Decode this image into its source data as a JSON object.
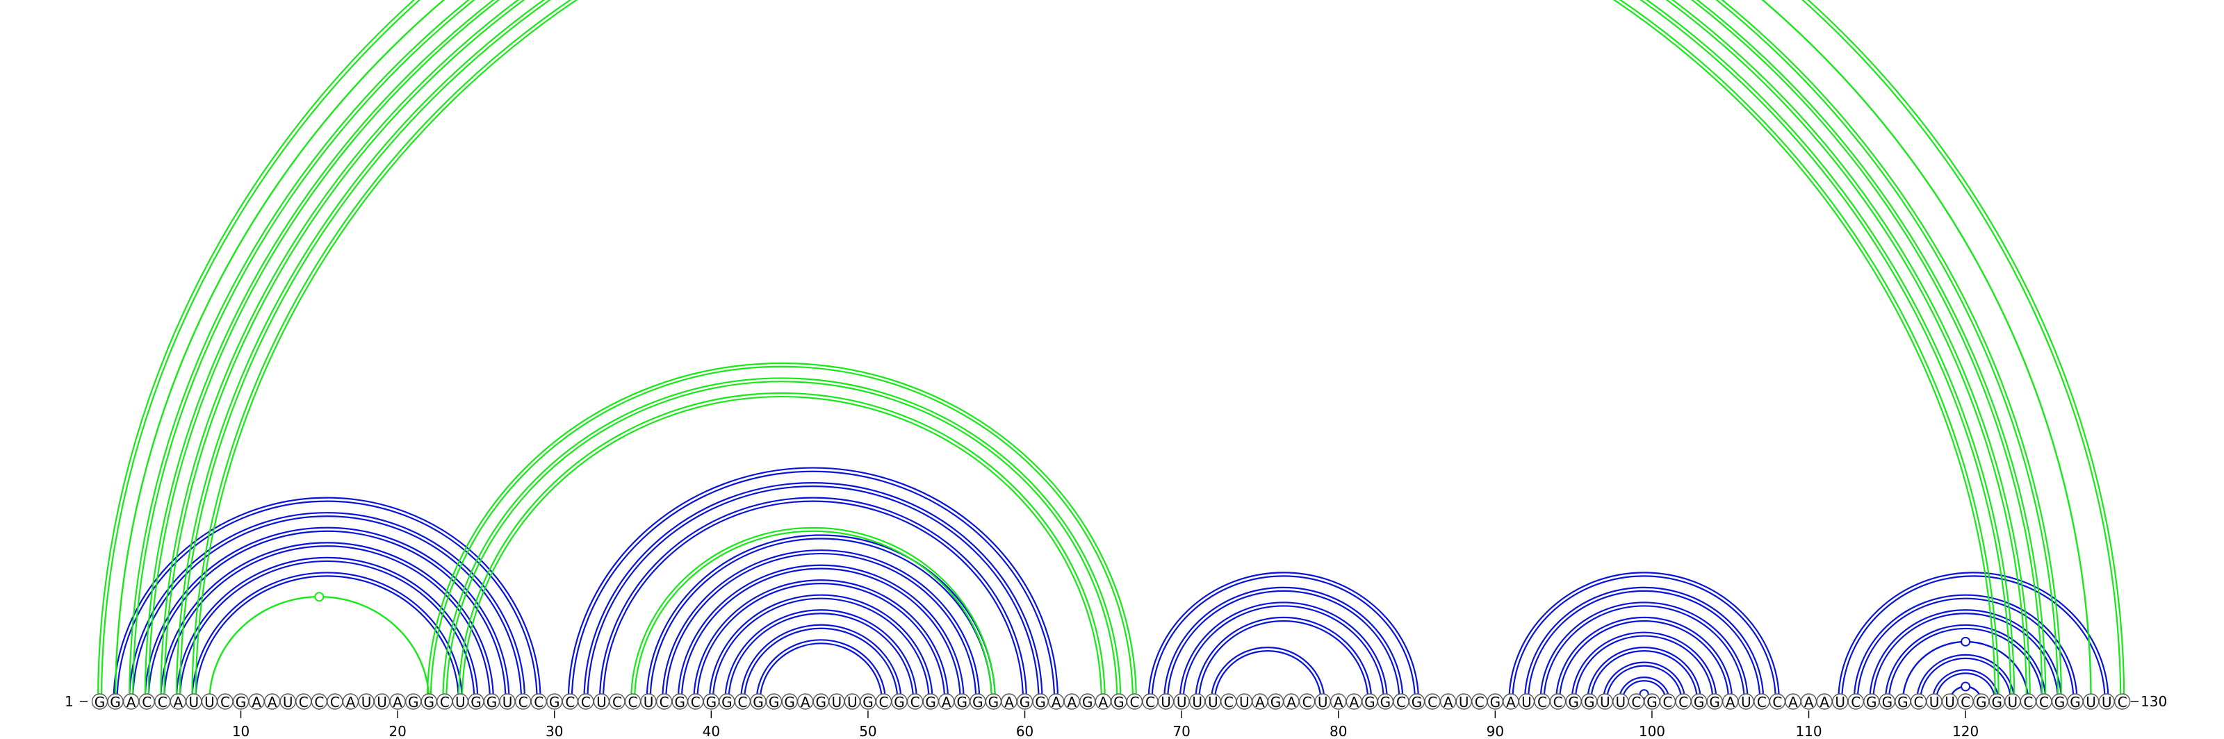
{
  "diagram": {
    "type": "rna-arc-diagram",
    "sequence": "GGACCAUUCGAAUCCCAUUAGGCUGGUCCGCCUCCUCGCGGCGGGAGUUGCGCGAGGGAGGAAGAGCCUUUUCUAGACUAAGGCGCAUCGAUCCGGUUCGCCGGAUCCAAAUCGGGCUUCGGUCCGGUUC",
    "start_label": "1",
    "end_label": "130",
    "tick_labels": [
      "10",
      "20",
      "30",
      "40",
      "50",
      "60",
      "70",
      "80",
      "90",
      "100",
      "110",
      "120"
    ],
    "colors": {
      "nested": "#0a14d6",
      "crossing": "#18e818"
    },
    "arcs": [
      {
        "i": 2,
        "j": 29,
        "c": "nested",
        "n": 2
      },
      {
        "i": 3,
        "j": 28,
        "c": "nested",
        "n": 2
      },
      {
        "i": 4,
        "j": 27,
        "c": "nested",
        "n": 2
      },
      {
        "i": 5,
        "j": 26,
        "c": "nested",
        "n": 2
      },
      {
        "i": 6,
        "j": 25,
        "c": "nested",
        "n": 2
      },
      {
        "i": 7,
        "j": 24,
        "c": "nested",
        "n": 2
      },
      {
        "i": 8,
        "j": 22,
        "c": "crossing",
        "n": 1,
        "knot": true
      },
      {
        "i": 31,
        "j": 62,
        "c": "nested",
        "n": 2
      },
      {
        "i": 32,
        "j": 61,
        "c": "nested",
        "n": 2
      },
      {
        "i": 33,
        "j": 60,
        "c": "nested",
        "n": 2
      },
      {
        "i": 36,
        "j": 58,
        "c": "nested",
        "n": 2
      },
      {
        "i": 37,
        "j": 57,
        "c": "nested",
        "n": 2
      },
      {
        "i": 38,
        "j": 56,
        "c": "nested",
        "n": 2
      },
      {
        "i": 39,
        "j": 55,
        "c": "nested",
        "n": 2
      },
      {
        "i": 40,
        "j": 54,
        "c": "nested",
        "n": 2
      },
      {
        "i": 41,
        "j": 53,
        "c": "nested",
        "n": 2
      },
      {
        "i": 42,
        "j": 52,
        "c": "nested",
        "n": 2
      },
      {
        "i": 43,
        "j": 51,
        "c": "nested",
        "n": 2
      },
      {
        "i": 35,
        "j": 58,
        "c": "crossing",
        "n": 2
      },
      {
        "i": 68,
        "j": 85,
        "c": "nested",
        "n": 2
      },
      {
        "i": 69,
        "j": 84,
        "c": "nested",
        "n": 2
      },
      {
        "i": 70,
        "j": 83,
        "c": "nested",
        "n": 2
      },
      {
        "i": 71,
        "j": 82,
        "c": "nested",
        "n": 2
      },
      {
        "i": 72,
        "j": 79,
        "c": "nested",
        "n": 2
      },
      {
        "i": 91,
        "j": 108,
        "c": "nested",
        "n": 2
      },
      {
        "i": 92,
        "j": 107,
        "c": "nested",
        "n": 2
      },
      {
        "i": 93,
        "j": 106,
        "c": "nested",
        "n": 2
      },
      {
        "i": 94,
        "j": 105,
        "c": "nested",
        "n": 2
      },
      {
        "i": 95,
        "j": 104,
        "c": "nested",
        "n": 2
      },
      {
        "i": 96,
        "j": 103,
        "c": "nested",
        "n": 2
      },
      {
        "i": 97,
        "j": 102,
        "c": "nested",
        "n": 2
      },
      {
        "i": 98,
        "j": 101,
        "c": "nested",
        "n": 2
      },
      {
        "i": 99,
        "j": 100,
        "c": "nested",
        "n": 1,
        "knot": true
      },
      {
        "i": 112,
        "j": 129,
        "c": "nested",
        "n": 2
      },
      {
        "i": 113,
        "j": 127,
        "c": "nested",
        "n": 2
      },
      {
        "i": 114,
        "j": 126,
        "c": "nested",
        "n": 2
      },
      {
        "i": 115,
        "j": 125,
        "c": "nested",
        "n": 2
      },
      {
        "i": 116,
        "j": 124,
        "c": "nested",
        "n": 1,
        "knot": true
      },
      {
        "i": 117,
        "j": 123,
        "c": "nested",
        "n": 2
      },
      {
        "i": 118,
        "j": 122,
        "c": "nested",
        "n": 2
      },
      {
        "i": 119,
        "j": 121,
        "c": "nested",
        "n": 1,
        "knot": true
      },
      {
        "i": 22,
        "j": 67,
        "c": "crossing",
        "n": 2
      },
      {
        "i": 23,
        "j": 66,
        "c": "crossing",
        "n": 2
      },
      {
        "i": 24,
        "j": 65,
        "c": "crossing",
        "n": 2
      },
      {
        "i": 1,
        "j": 130,
        "c": "crossing",
        "n": 2
      },
      {
        "i": 2,
        "j": 128,
        "c": "crossing",
        "n": 1,
        "knot": true
      },
      {
        "i": 3,
        "j": 126,
        "c": "crossing",
        "n": 2
      },
      {
        "i": 4,
        "j": 125,
        "c": "crossing",
        "n": 2
      },
      {
        "i": 5,
        "j": 124,
        "c": "crossing",
        "n": 2
      },
      {
        "i": 6,
        "j": 123,
        "c": "crossing",
        "n": 2
      },
      {
        "i": 7,
        "j": 122,
        "c": "crossing",
        "n": 2
      }
    ]
  }
}
